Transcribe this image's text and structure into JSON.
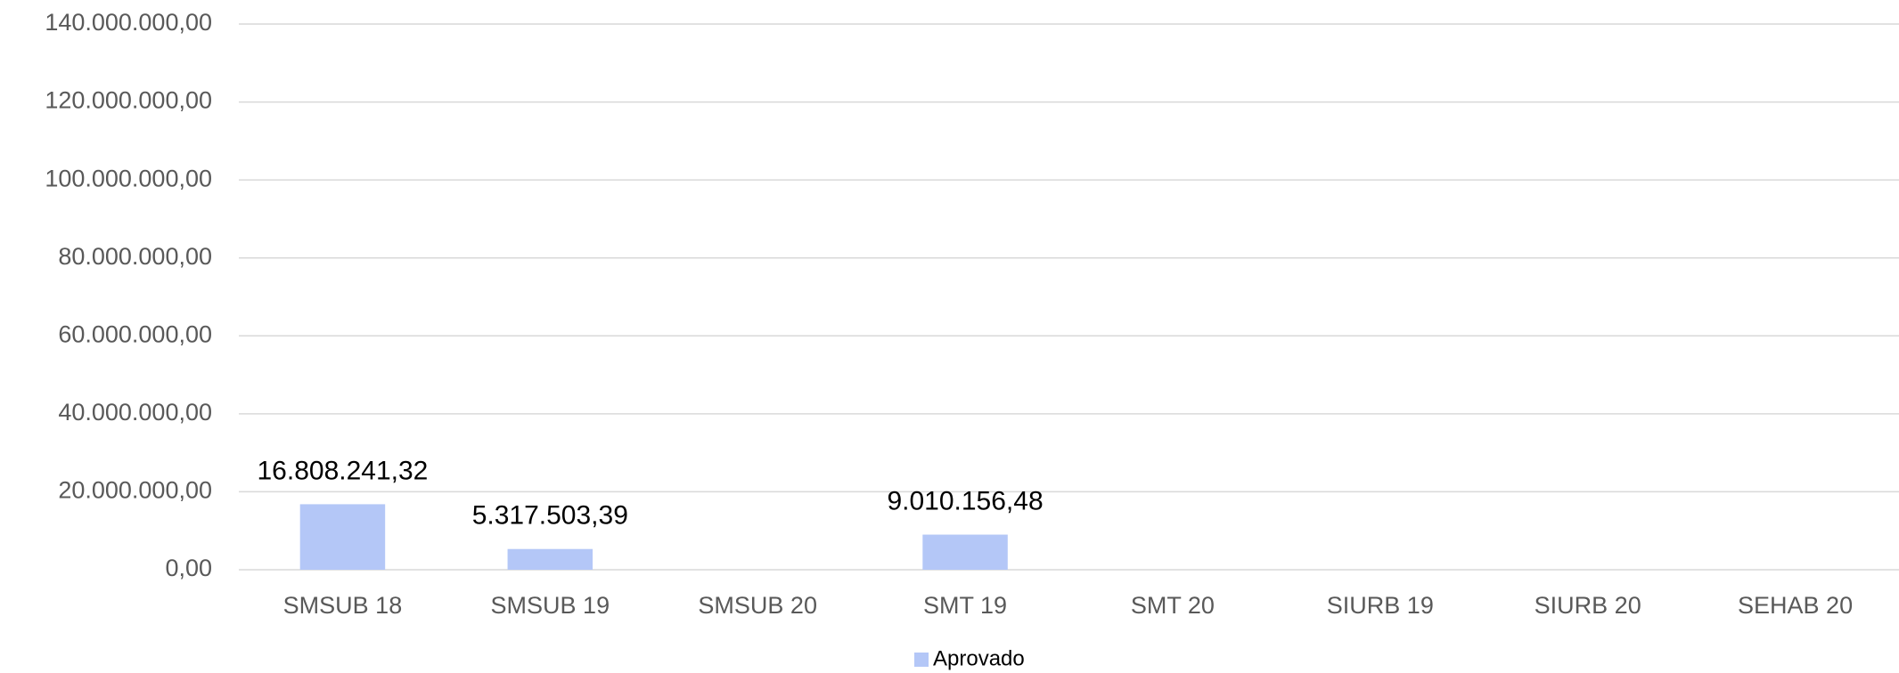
{
  "chart_data": {
    "type": "bar",
    "categories": [
      "SMSUB 18",
      "SMSUB 19",
      "SMSUB 20",
      "SMT 19",
      "SMT 20",
      "SIURB 19",
      "SIURB 20",
      "SEHAB 20"
    ],
    "series": [
      {
        "name": "Aprovado",
        "color": "#b4c7f7",
        "values": [
          16808241.32,
          5317503.39,
          null,
          9010156.48,
          null,
          null,
          null,
          null
        ],
        "value_labels": [
          "16.808.241,32",
          "5.317.503,39",
          null,
          "9.010.156,48",
          null,
          null,
          null,
          null
        ]
      }
    ],
    "ylim": [
      0,
      140000000
    ],
    "yticks": [
      {
        "value": 0,
        "label": "0,00"
      },
      {
        "value": 20000000,
        "label": "20.000.000,00"
      },
      {
        "value": 40000000,
        "label": "40.000.000,00"
      },
      {
        "value": 60000000,
        "label": "60.000.000,00"
      },
      {
        "value": 80000000,
        "label": "80.000.000,00"
      },
      {
        "value": 100000000,
        "label": "100.000.000,00"
      },
      {
        "value": 120000000,
        "label": "120.000.000,00"
      },
      {
        "value": 140000000,
        "label": "140.000.000,00"
      }
    ],
    "grid": true,
    "legend": "bottom"
  }
}
